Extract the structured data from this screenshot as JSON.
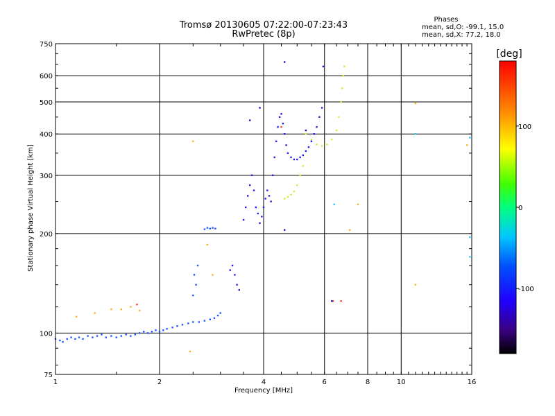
{
  "chart_data": {
    "type": "scatter",
    "title": "Tromsø 20130605 07:22:00-07:23:43",
    "subtitle": "RwPretec (8p)",
    "xlabel": "Frequency [MHz]",
    "ylabel": "Stationary phase Virtual Height [km]",
    "x_scale": "log",
    "y_scale": "log",
    "xlim": [
      1,
      16
    ],
    "ylim": [
      75,
      750
    ],
    "x_ticks": [
      1,
      2,
      4,
      6,
      8,
      10,
      16
    ],
    "x_tick_labels": [
      "1",
      "2",
      "4",
      "6",
      "8",
      "10",
      "16"
    ],
    "y_ticks": [
      75,
      100,
      200,
      300,
      400,
      500,
      600,
      750
    ],
    "y_tick_labels": [
      "75",
      "100",
      "200",
      "300",
      "400",
      "500",
      "600",
      "750"
    ],
    "grid": true,
    "phase_info": {
      "title": "Phases",
      "line1": "mean, sd,O: -99.1, 15.0",
      "line2": "mean, sd,X:  77.2, 18.0"
    },
    "colorbar": {
      "label": "[deg]",
      "ticks": [
        100,
        0,
        -100
      ],
      "tick_labels": [
        "100",
        "0",
        "-100"
      ],
      "range": [
        -180,
        180
      ]
    },
    "trace_colors": {
      "o_low": "#1f56ff",
      "o_mid": "#2020e6",
      "o_dark": "#1e10cc",
      "x_mode": "#c8f03c",
      "outlier_orange": "#ffb030",
      "outlier_red": "#ff3c28",
      "outlier_cyan": "#28c8ff"
    },
    "series": [
      {
        "mode": "o_low",
        "points": [
          [
            1.0,
            96
          ],
          [
            1.03,
            95
          ],
          [
            1.05,
            94
          ],
          [
            1.08,
            96
          ],
          [
            1.11,
            97
          ],
          [
            1.14,
            96
          ],
          [
            1.17,
            97
          ],
          [
            1.2,
            96
          ],
          [
            1.24,
            98
          ],
          [
            1.28,
            97
          ],
          [
            1.32,
            98
          ],
          [
            1.36,
            99
          ],
          [
            1.4,
            97
          ],
          [
            1.45,
            98
          ],
          [
            1.5,
            97
          ],
          [
            1.55,
            98
          ],
          [
            1.6,
            99
          ],
          [
            1.65,
            98
          ],
          [
            1.7,
            99
          ],
          [
            1.75,
            100
          ],
          [
            1.8,
            101
          ],
          [
            1.85,
            100
          ],
          [
            1.9,
            101
          ],
          [
            1.95,
            102
          ],
          [
            2.0,
            101
          ],
          [
            2.05,
            102
          ],
          [
            2.1,
            103
          ],
          [
            2.18,
            104
          ],
          [
            2.25,
            105
          ],
          [
            2.33,
            106
          ],
          [
            2.42,
            107
          ],
          [
            2.5,
            108
          ],
          [
            2.6,
            108
          ],
          [
            2.7,
            109
          ],
          [
            2.8,
            110
          ],
          [
            2.88,
            111
          ],
          [
            2.95,
            113
          ],
          [
            3.0,
            115
          ]
        ]
      },
      {
        "mode": "o_low",
        "points": [
          [
            2.7,
            206
          ],
          [
            2.75,
            208
          ],
          [
            2.8,
            207
          ],
          [
            2.85,
            208
          ],
          [
            2.9,
            207
          ],
          [
            2.5,
            130
          ],
          [
            2.55,
            140
          ],
          [
            2.52,
            150
          ],
          [
            2.58,
            160
          ]
        ]
      },
      {
        "mode": "o_mid",
        "points": [
          [
            3.2,
            155
          ],
          [
            3.25,
            160
          ],
          [
            3.3,
            150
          ],
          [
            3.35,
            140
          ],
          [
            3.4,
            135
          ],
          [
            3.5,
            220
          ],
          [
            3.55,
            240
          ],
          [
            3.6,
            260
          ],
          [
            3.65,
            280
          ],
          [
            3.7,
            300
          ],
          [
            3.75,
            270
          ],
          [
            3.8,
            240
          ],
          [
            3.85,
            230
          ],
          [
            3.9,
            215
          ],
          [
            3.95,
            225
          ],
          [
            4.0,
            240
          ],
          [
            4.05,
            255
          ],
          [
            4.1,
            270
          ],
          [
            4.15,
            260
          ],
          [
            4.2,
            250
          ],
          [
            4.25,
            300
          ],
          [
            4.3,
            340
          ],
          [
            4.35,
            380
          ],
          [
            4.4,
            420
          ],
          [
            4.45,
            450
          ],
          [
            4.5,
            460
          ],
          [
            4.55,
            430
          ],
          [
            4.6,
            400
          ],
          [
            4.65,
            370
          ],
          [
            4.7,
            350
          ],
          [
            4.8,
            340
          ],
          [
            4.9,
            335
          ],
          [
            5.0,
            335
          ],
          [
            5.1,
            340
          ],
          [
            5.2,
            345
          ],
          [
            5.3,
            355
          ],
          [
            5.4,
            365
          ],
          [
            5.5,
            380
          ],
          [
            5.6,
            400
          ],
          [
            5.7,
            420
          ],
          [
            5.8,
            450
          ],
          [
            5.9,
            480
          ]
        ]
      },
      {
        "mode": "x_mode",
        "points": [
          [
            4.6,
            255
          ],
          [
            4.7,
            258
          ],
          [
            4.8,
            262
          ],
          [
            4.9,
            268
          ],
          [
            5.0,
            280
          ],
          [
            5.1,
            300
          ],
          [
            5.2,
            320
          ],
          [
            5.3,
            400
          ],
          [
            5.5,
            385
          ],
          [
            5.7,
            372
          ],
          [
            5.9,
            368
          ],
          [
            6.1,
            372
          ],
          [
            6.3,
            385
          ],
          [
            6.5,
            410
          ],
          [
            6.6,
            450
          ],
          [
            6.7,
            500
          ],
          [
            6.75,
            550
          ],
          [
            6.8,
            600
          ],
          [
            6.85,
            640
          ]
        ]
      },
      {
        "mode": "outlier_orange",
        "points": [
          [
            1.15,
            112
          ],
          [
            1.3,
            115
          ],
          [
            1.45,
            118
          ],
          [
            1.55,
            118
          ],
          [
            1.65,
            120
          ],
          [
            1.75,
            117
          ],
          [
            2.5,
            380
          ],
          [
            2.45,
            88
          ],
          [
            2.75,
            185
          ],
          [
            2.85,
            150
          ],
          [
            7.1,
            205
          ],
          [
            7.5,
            245
          ],
          [
            11.0,
            140
          ],
          [
            15.5,
            370
          ],
          [
            11.0,
            495
          ]
        ]
      },
      {
        "mode": "outlier_red",
        "points": [
          [
            6.35,
            125
          ],
          [
            6.7,
            125
          ],
          [
            1.72,
            122
          ],
          [
            4.5,
            420
          ]
        ]
      },
      {
        "mode": "outlier_cyan",
        "points": [
          [
            15.8,
            195
          ],
          [
            15.8,
            170
          ],
          [
            15.8,
            390
          ],
          [
            11.0,
            400
          ],
          [
            6.4,
            245
          ]
        ]
      },
      {
        "mode": "o_dark",
        "points": [
          [
            4.6,
            660
          ],
          [
            5.95,
            640
          ],
          [
            4.6,
            205
          ],
          [
            3.9,
            480
          ],
          [
            3.65,
            440
          ],
          [
            5.3,
            410
          ],
          [
            6.3,
            125
          ]
        ]
      }
    ]
  }
}
